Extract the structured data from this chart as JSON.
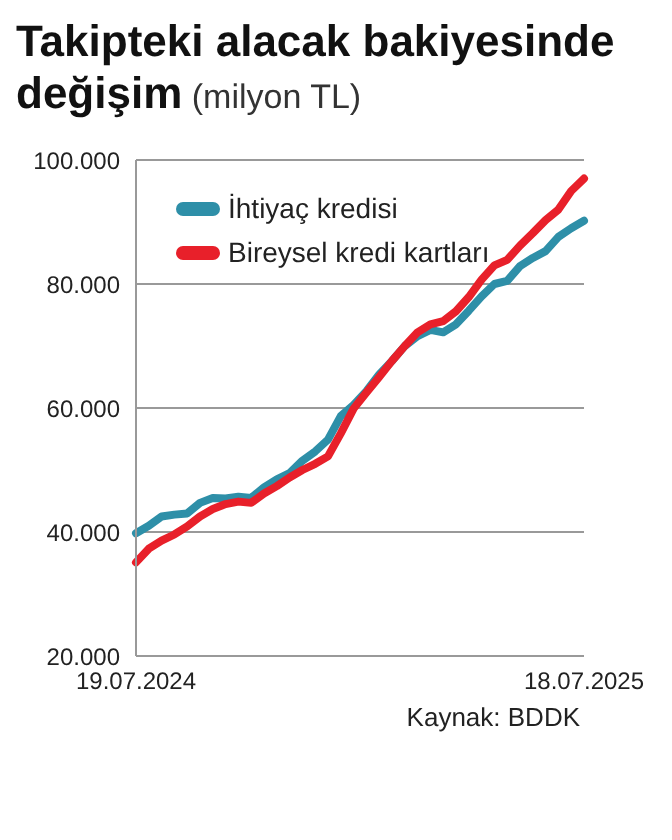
{
  "chart_data": {
    "type": "line",
    "title": "Takipteki alacak bakiyesinde değişim",
    "subtitle": "(milyon TL)",
    "categories": [
      "19.07.2024",
      null,
      null,
      null,
      null,
      null,
      null,
      null,
      null,
      null,
      null,
      null,
      null,
      null,
      null,
      null,
      null,
      null,
      null,
      null,
      null,
      null,
      null,
      null,
      null,
      null,
      null,
      null,
      null,
      null,
      null,
      null,
      null,
      null,
      null,
      "18.07.2025"
    ],
    "series": [
      {
        "name": "İhtiyaç kredisi",
        "color": "#2e8fa8",
        "values": [
          39800,
          41000,
          42500,
          42800,
          43000,
          44700,
          45500,
          45400,
          45700,
          45500,
          47200,
          48500,
          49500,
          51500,
          53000,
          54900,
          58700,
          60500,
          62700,
          65400,
          67600,
          70000,
          71600,
          72600,
          72200,
          73500,
          75700,
          78000,
          80000,
          80500,
          82900,
          84200,
          85300,
          87600,
          89000,
          90200
        ]
      },
      {
        "name": "Bireysel kredi kartları",
        "color": "#e8202a",
        "values": [
          35100,
          37300,
          38600,
          39600,
          40900,
          42500,
          43700,
          44500,
          44900,
          44700,
          46200,
          47400,
          48800,
          50000,
          51000,
          52200,
          55900,
          59900,
          62500,
          65000,
          67600,
          70000,
          72200,
          73500,
          74000,
          75600,
          77900,
          80700,
          83000,
          83900,
          86200,
          88200,
          90300,
          92000,
          95000,
          97000
        ]
      }
    ],
    "ylim": [
      20000,
      100000
    ],
    "yticks": [
      {
        "value": 20000,
        "label": "20.000"
      },
      {
        "value": 40000,
        "label": "40.000"
      },
      {
        "value": 60000,
        "label": "60.000"
      },
      {
        "value": 80000,
        "label": "80.000"
      },
      {
        "value": 100000,
        "label": "100.000"
      }
    ],
    "grid": "y",
    "legend": "top left",
    "marker": "none",
    "line_style": "solid",
    "annotations": [
      "Kaynak: BDDK"
    ]
  }
}
